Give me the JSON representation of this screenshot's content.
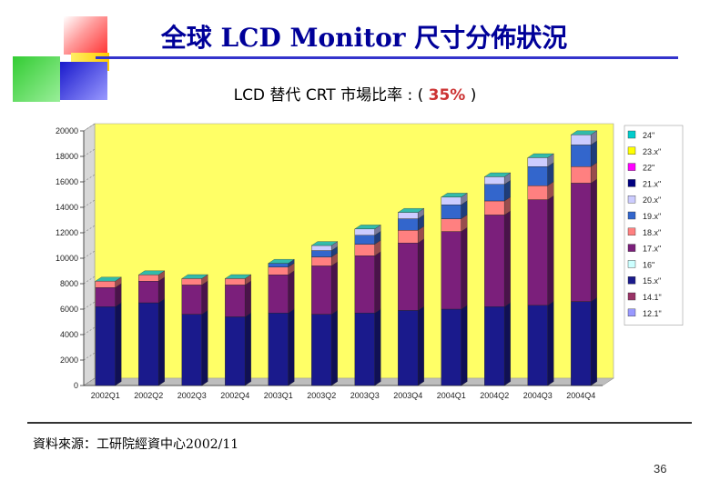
{
  "slide": {
    "title": "全球 LCD Monitor 尺寸分佈狀況",
    "subtitle_prefix": "LCD 替代 CRT 市場比率 : (",
    "subtitle_pct": "35%",
    "subtitle_suffix": ")",
    "source": "資料來源：工研院經資中心2002/11",
    "page_number": "36"
  },
  "colors": {
    "title": "#000099",
    "chart_bg": "#ffff66",
    "deco_red": "#ff3333",
    "deco_yellow": "#ffcc00",
    "deco_green": "#33cc33",
    "deco_blue": "#3333cc"
  },
  "chart_data": {
    "type": "bar",
    "stacked": true,
    "title": "",
    "xlabel": "",
    "ylabel": "",
    "ylim": [
      0,
      20000
    ],
    "yticks": [
      "0",
      "2000",
      "4000",
      "6000",
      "8000",
      "10000",
      "12000",
      "14000",
      "16000",
      "18000",
      "20000"
    ],
    "categories": [
      "2002Q1",
      "2002Q2",
      "2002Q3",
      "2002Q4",
      "2003Q1",
      "2003Q2",
      "2003Q3",
      "2003Q4",
      "2004Q1",
      "2004Q2",
      "2004Q3",
      "2004Q4"
    ],
    "series": [
      {
        "name": "12.1\"",
        "color": "#9999ff",
        "values": [
          0,
          0,
          0,
          0,
          0,
          0,
          0,
          0,
          0,
          0,
          0,
          0
        ]
      },
      {
        "name": "14.1\"",
        "color": "#993366",
        "values": [
          0,
          0,
          0,
          0,
          0,
          0,
          0,
          0,
          0,
          0,
          0,
          0
        ]
      },
      {
        "name": "15.x\"",
        "color": "#1a1a8c",
        "values": [
          6200,
          6500,
          5600,
          5400,
          5700,
          5600,
          5700,
          5900,
          6000,
          6200,
          6300,
          6600
        ]
      },
      {
        "name": "16\"",
        "color": "#ccffff",
        "values": [
          0,
          0,
          0,
          0,
          0,
          0,
          0,
          0,
          0,
          0,
          0,
          0
        ]
      },
      {
        "name": "17.x\"",
        "color": "#7b1f7b",
        "values": [
          1500,
          1700,
          2300,
          2500,
          3000,
          3800,
          4500,
          5300,
          6100,
          7200,
          8300,
          9300
        ]
      },
      {
        "name": "18.x\"",
        "color": "#ff8080",
        "values": [
          500,
          500,
          500,
          500,
          600,
          700,
          900,
          1000,
          1000,
          1100,
          1100,
          1300
        ]
      },
      {
        "name": "19.x\"",
        "color": "#3366cc",
        "values": [
          0,
          0,
          0,
          0,
          300,
          500,
          700,
          900,
          1100,
          1300,
          1500,
          1700
        ]
      },
      {
        "name": "20.x\"",
        "color": "#ccccff",
        "values": [
          0,
          0,
          0,
          0,
          0,
          400,
          500,
          500,
          600,
          600,
          700,
          800
        ]
      },
      {
        "name": "21.x\"",
        "color": "#000080",
        "values": [
          0,
          0,
          0,
          0,
          0,
          0,
          0,
          0,
          0,
          0,
          0,
          0
        ]
      },
      {
        "name": "22\"",
        "color": "#ff00ff",
        "values": [
          0,
          0,
          0,
          0,
          0,
          0,
          0,
          0,
          0,
          0,
          0,
          0
        ]
      },
      {
        "name": "23.x\"",
        "color": "#ffff00",
        "values": [
          0,
          0,
          0,
          0,
          0,
          0,
          0,
          0,
          0,
          0,
          0,
          0
        ]
      },
      {
        "name": "24\"",
        "color": "#00cccc",
        "values": [
          0,
          0,
          0,
          0,
          0,
          0,
          0,
          0,
          0,
          0,
          0,
          0
        ]
      }
    ],
    "legend_order": [
      "24\"",
      "23.x\"",
      "22\"",
      "21.x\"",
      "20.x\"",
      "19.x\"",
      "18.x\"",
      "17.x\"",
      "16\"",
      "15.x\"",
      "14.1\"",
      "12.1\""
    ],
    "legend_position": "right"
  }
}
